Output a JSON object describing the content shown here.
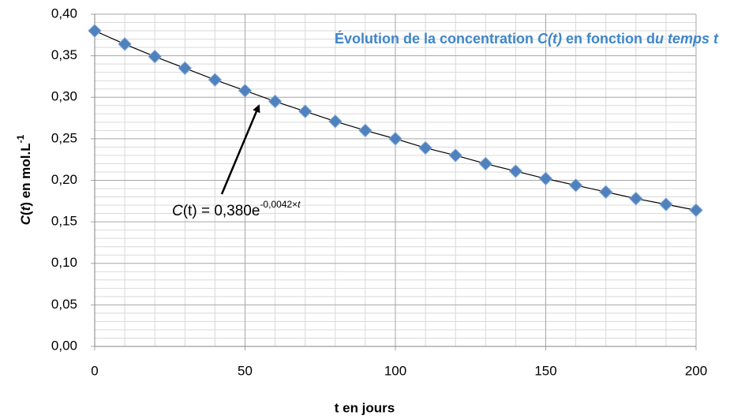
{
  "chart_data": {
    "type": "scatter",
    "title_parts": [
      "Évolution de la concentration ",
      "C(t)",
      " en fonction d",
      "u temps t"
    ],
    "xlabel": "t en jours",
    "ylabel_parts": [
      "C",
      "(",
      "t",
      ") en mol.L",
      "-1"
    ],
    "annotation_parts": [
      "C",
      "(t) = 0,380e",
      "-0,0042×",
      "t"
    ],
    "x": [
      0,
      10,
      20,
      30,
      40,
      50,
      60,
      70,
      80,
      90,
      100,
      110,
      120,
      130,
      140,
      150,
      160,
      170,
      180,
      190,
      200
    ],
    "series": [
      {
        "color": "#4f81bd",
        "values": [
          0.38,
          0.364,
          0.349,
          0.335,
          0.321,
          0.308,
          0.295,
          0.283,
          0.271,
          0.26,
          0.25,
          0.239,
          0.23,
          0.22,
          0.211,
          0.202,
          0.194,
          0.186,
          0.178,
          0.171,
          0.164
        ]
      }
    ],
    "trendline_color": "#000000",
    "xlim": [
      0,
      200
    ],
    "ylim": [
      0,
      0.4
    ],
    "xticks": [
      0,
      50,
      100,
      150,
      200
    ],
    "yticks": [
      {
        "value": 0,
        "label": "0,00"
      },
      {
        "value": 0.05,
        "label": "0,05"
      },
      {
        "value": 0.1,
        "label": "0,10"
      },
      {
        "value": 0.15,
        "label": "0,15"
      },
      {
        "value": 0.2,
        "label": "0,20"
      },
      {
        "value": 0.25,
        "label": "0,25"
      },
      {
        "value": 0.3,
        "label": "0,30"
      },
      {
        "value": 0.35,
        "label": "0,35"
      },
      {
        "value": 0.4,
        "label": "0,40"
      }
    ],
    "xminorticks": [
      10,
      20,
      30,
      40,
      60,
      70,
      80,
      90,
      110,
      120,
      130,
      140,
      160,
      170,
      180,
      190
    ],
    "yminorticks": [
      0.01,
      0.02,
      0.03,
      0.04,
      0.06,
      0.07,
      0.08,
      0.09,
      0.11,
      0.12,
      0.13,
      0.14,
      0.16,
      0.17,
      0.18,
      0.19,
      0.21,
      0.22,
      0.23,
      0.24,
      0.26,
      0.27,
      0.28,
      0.29,
      0.31,
      0.32,
      0.33,
      0.34,
      0.36,
      0.37,
      0.38,
      0.39
    ],
    "grid": true,
    "title_color": "#3f86c9"
  }
}
